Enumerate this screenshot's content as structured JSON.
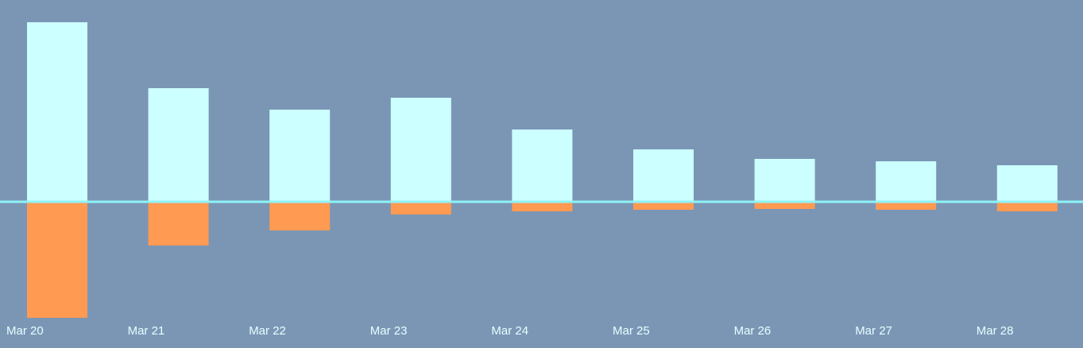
{
  "chart_data": {
    "type": "bar",
    "categories": [
      "Mar 20",
      "Mar 21",
      "Mar 22",
      "Mar 23",
      "Mar 24",
      "Mar 25",
      "Mar 26",
      "Mar 27",
      "Mar 28"
    ],
    "series": [
      {
        "color": "#ccffff",
        "values": [
          227,
          144,
          117,
          132,
          92,
          67,
          55,
          52,
          47
        ]
      },
      {
        "color": "#ff9a52",
        "values": [
          -145,
          -54,
          -35,
          -15,
          -11,
          -9,
          -8,
          -9,
          -11
        ]
      }
    ],
    "ylim": [
      -183,
      255
    ],
    "baseline_color": "#8ef3f7"
  }
}
